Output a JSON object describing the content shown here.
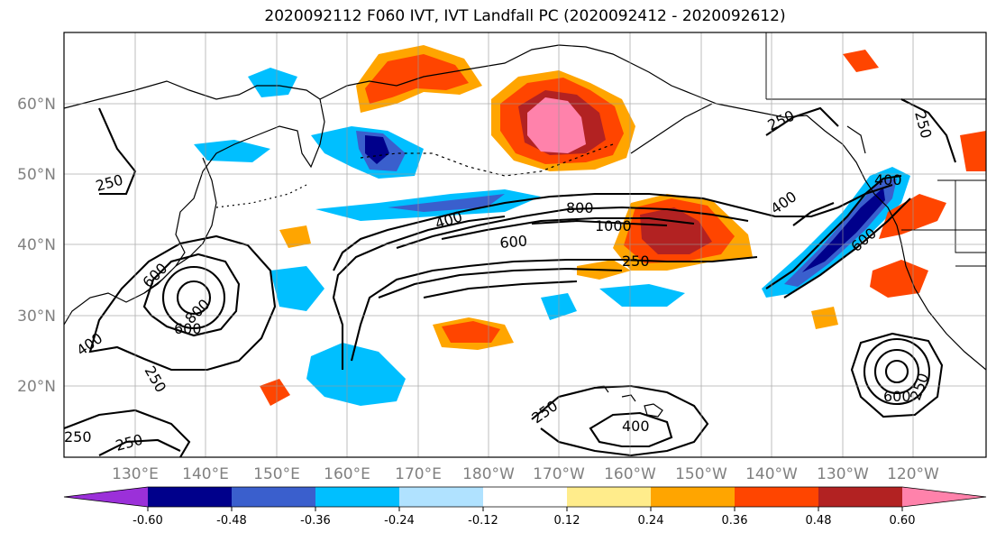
{
  "title": "2020092112 F060 IVT, IVT Landfall PC (2020092412 - 2020092612)",
  "latitude_labels": [
    "60°N",
    "50°N",
    "40°N",
    "30°N",
    "20°N"
  ],
  "longitude_labels": [
    "130°E",
    "140°E",
    "150°E",
    "160°E",
    "170°E",
    "180°W",
    "170°W",
    "160°W",
    "150°W",
    "140°W",
    "130°W",
    "120°W"
  ],
  "colorbar": {
    "colors": [
      "#9b30d9",
      "#00008b",
      "#3a5fcd",
      "#00bfff",
      "#b0e2ff",
      "#ffffff",
      "#ffec8b",
      "#ffa500",
      "#ff4500",
      "#b22222",
      "#ff82ab"
    ],
    "tick_labels": [
      "-0.60",
      "-0.48",
      "-0.36",
      "-0.24",
      "-0.12",
      "0.12",
      "0.24",
      "0.36",
      "0.48",
      "0.60"
    ]
  },
  "contour_labels": [
    "250",
    "250",
    "400",
    "600",
    "800",
    "1000",
    "250",
    "400",
    "600",
    "400",
    "600",
    "800",
    "600",
    "250",
    "250",
    "250",
    "400",
    "600",
    "400",
    "250",
    "250",
    "250"
  ]
}
